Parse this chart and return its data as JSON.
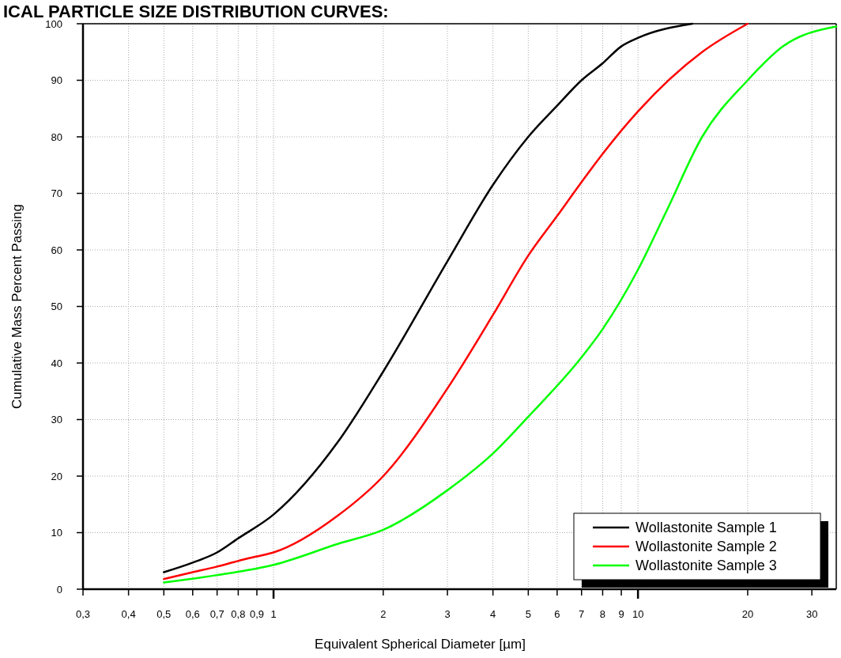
{
  "chart_data": {
    "type": "line",
    "title": "ICAL PARTICLE SIZE DISTRIBUTION CURVES:",
    "xlabel": "Equivalent Spherical Diameter [µm]",
    "ylabel": "Cumulative Mass Percent Passing",
    "log": "x",
    "xlim": [
      0.3,
      35
    ],
    "ylim": [
      0,
      100
    ],
    "xticks": [
      {
        "value": 0.3,
        "label": "0,3"
      },
      {
        "value": 0.4,
        "label": "0,4"
      },
      {
        "value": 0.5,
        "label": "0,5"
      },
      {
        "value": 0.6,
        "label": "0,6"
      },
      {
        "value": 0.7,
        "label": "0,7"
      },
      {
        "value": 0.8,
        "label": "0,8"
      },
      {
        "value": 0.9,
        "label": "0,9"
      },
      1,
      2,
      3,
      4,
      5,
      6,
      7,
      8,
      9,
      10,
      20,
      30
    ],
    "yticks": [
      0,
      10,
      20,
      30,
      40,
      50,
      60,
      70,
      80,
      90,
      100
    ],
    "grid": true,
    "legend": "bottom right",
    "marker": "none",
    "line_style": "solid",
    "series": [
      {
        "name": "Wollastonite Sample 1",
        "color": "#000000",
        "x": [
          0.5,
          0.6,
          0.7,
          0.8,
          1,
          1.5,
          2,
          3,
          4,
          5,
          6,
          7,
          8,
          9,
          10,
          14.1
        ],
        "values": [
          3,
          4.7,
          6.5,
          9,
          13.2,
          26,
          38.5,
          58,
          71.5,
          80,
          85.5,
          90,
          93,
          96,
          97.5,
          100
        ]
      },
      {
        "name": "Wollastonite Sample 2",
        "color": "#ff0000",
        "x": [
          0.5,
          0.6,
          0.7,
          0.8,
          0.9,
          1,
          1.5,
          2,
          3,
          4,
          5,
          6,
          7,
          8,
          10,
          15,
          20
        ],
        "values": [
          1.8,
          3,
          4,
          5,
          5.8,
          6.5,
          13,
          20,
          35.5,
          48.5,
          59,
          66,
          72,
          77,
          84.5,
          95,
          100
        ]
      },
      {
        "name": "Wollastonite Sample 3",
        "color": "#00ff00",
        "x": [
          0.5,
          0.7,
          1,
          1.5,
          2,
          3,
          4,
          5,
          7,
          8,
          10,
          12,
          15,
          20,
          25,
          35
        ],
        "values": [
          1.2,
          2.5,
          4.3,
          8,
          10.5,
          17.5,
          24,
          30.5,
          41,
          46,
          56.5,
          67,
          80,
          90,
          96,
          99.5
        ]
      }
    ]
  }
}
